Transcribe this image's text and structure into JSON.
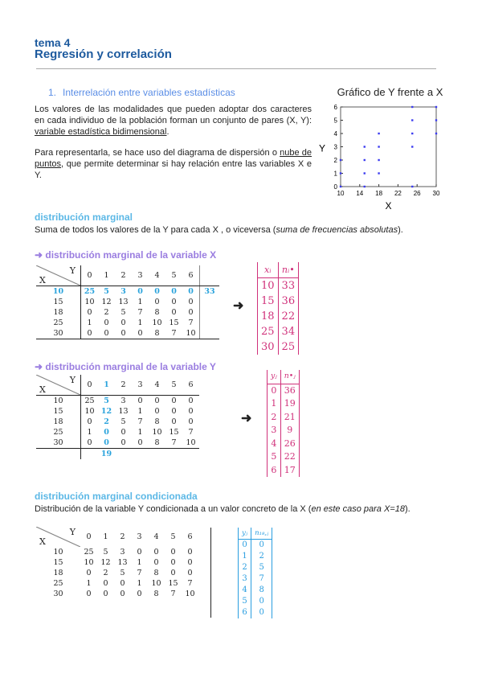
{
  "header": {
    "topic": "tema 4",
    "title": "Regresión y correlación"
  },
  "section1": {
    "number": "1.",
    "title": "Interrelación entre variables estadísticas",
    "para1": "Los valores de las modalidades que pueden adoptar dos caracteres en cada individuo de la población forman un conjunto de pares (X, Y): ",
    "para1_term": "variable estadística bidimensional",
    "para1_end": ".",
    "para2_start": "Para representarla, se hace uso del diagrama de dispersión o ",
    "para2_term": "nube de puntos",
    "para2_end": ", que permite determinar si hay relación entre las variables X e Y."
  },
  "chart_data": {
    "type": "scatter",
    "title": "Gráfico de Y frente a X",
    "xlabel": "X",
    "ylabel": "Y",
    "xlim": [
      10,
      30
    ],
    "ylim": [
      0,
      6
    ],
    "xticks": [
      10,
      14,
      18,
      22,
      26,
      30
    ],
    "yticks": [
      0,
      1,
      2,
      3,
      4,
      5,
      6
    ],
    "point_color": "#3b3bf0",
    "points": [
      [
        10,
        0
      ],
      [
        10,
        1
      ],
      [
        10,
        2
      ],
      [
        15,
        0
      ],
      [
        15,
        1
      ],
      [
        15,
        2
      ],
      [
        15,
        3
      ],
      [
        18,
        1
      ],
      [
        18,
        2
      ],
      [
        18,
        3
      ],
      [
        18,
        4
      ],
      [
        25,
        0
      ],
      [
        25,
        3
      ],
      [
        25,
        4
      ],
      [
        25,
        5
      ],
      [
        25,
        6
      ],
      [
        30,
        4
      ],
      [
        30,
        5
      ],
      [
        30,
        6
      ]
    ]
  },
  "marginal": {
    "heading": "distribución marginal",
    "text_start": "Suma de todos los valores de la Y para cada X , o viceversa (",
    "text_em": "suma de frecuencias absolutas",
    "text_end": ")."
  },
  "joint": {
    "y_label": "Y",
    "x_label": "X",
    "y_values": [
      "0",
      "1",
      "2",
      "3",
      "4",
      "5",
      "6"
    ],
    "rows": [
      {
        "x": "10",
        "f": [
          "25",
          "5",
          "3",
          "0",
          "0",
          "0",
          "0"
        ]
      },
      {
        "x": "15",
        "f": [
          "10",
          "12",
          "13",
          "1",
          "0",
          "0",
          "0"
        ]
      },
      {
        "x": "18",
        "f": [
          "0",
          "2",
          "5",
          "7",
          "8",
          "0",
          "0"
        ]
      },
      {
        "x": "25",
        "f": [
          "1",
          "0",
          "0",
          "1",
          "10",
          "15",
          "7"
        ]
      },
      {
        "x": "30",
        "f": [
          "0",
          "0",
          "0",
          "0",
          "8",
          "7",
          "10"
        ]
      }
    ]
  },
  "marginalX": {
    "heading": "➜ distribución marginal de la variable X",
    "row_total": "33",
    "arrow": "➜",
    "col_headers": [
      "xᵢ",
      "nᵢ•"
    ],
    "rows": [
      [
        "10",
        "33"
      ],
      [
        "15",
        "36"
      ],
      [
        "18",
        "22"
      ],
      [
        "25",
        "34"
      ],
      [
        "30",
        "25"
      ]
    ]
  },
  "marginalY": {
    "heading": "➜ distribución marginal de la variable Y",
    "col_total": "19",
    "arrow": "➜",
    "col_headers": [
      "yⱼ",
      "n•ⱼ"
    ],
    "rows": [
      [
        "0",
        "36"
      ],
      [
        "1",
        "19"
      ],
      [
        "2",
        "21"
      ],
      [
        "3",
        "9"
      ],
      [
        "4",
        "26"
      ],
      [
        "5",
        "22"
      ],
      [
        "6",
        "17"
      ]
    ]
  },
  "conditional": {
    "heading": "distribución marginal condicionada",
    "text_start": "Distribución de la variable Y condicionada a un valor concreto de la X (",
    "text_em": "en este caso para X=18",
    "text_end": ").",
    "col_headers": [
      "yⱼ",
      "n₁₈,ⱼ"
    ],
    "rows": [
      [
        "0",
        "0"
      ],
      [
        "1",
        "2"
      ],
      [
        "2",
        "5"
      ],
      [
        "3",
        "7"
      ],
      [
        "4",
        "8"
      ],
      [
        "5",
        "0"
      ],
      [
        "6",
        "0"
      ]
    ]
  },
  "colors": {
    "title": "#1d5a9e",
    "section": "#5b8ee6",
    "marginal": "#5cb8e6",
    "purple": "#9a7de0",
    "pink": "#d0307a",
    "blue": "#2a9ee0"
  }
}
